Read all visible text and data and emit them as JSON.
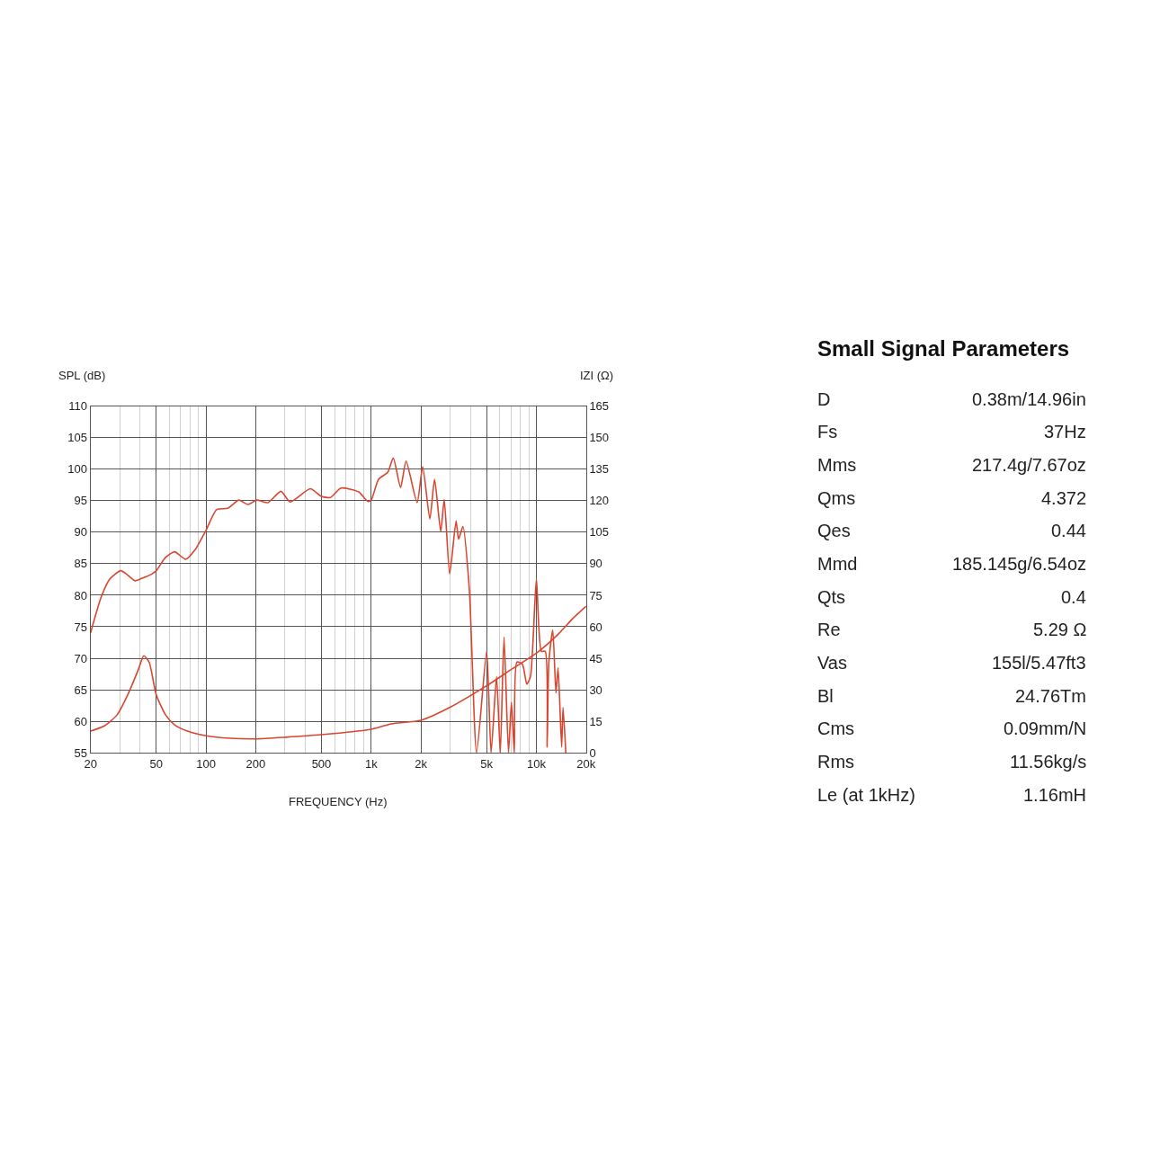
{
  "chart_data": [
    {
      "type": "line",
      "xlabel": "FREQUENCY (Hz)",
      "ylabel": "SPL (dB)",
      "y2label": "IZI (Ω)",
      "log": "x",
      "grid": true,
      "marker": "none",
      "line_style": "solid",
      "xlim": [
        20,
        20000
      ],
      "ylim": [
        55,
        110
      ],
      "y2lim": [
        0,
        165
      ],
      "xticks": [
        20,
        {
          "value": 30,
          "label": null
        },
        {
          "value": 40,
          "label": null
        },
        50,
        {
          "value": 60,
          "label": null
        },
        {
          "value": 70,
          "label": null
        },
        {
          "value": 80,
          "label": null
        },
        {
          "value": 90,
          "label": null
        },
        100,
        200,
        {
          "value": 300,
          "label": null
        },
        {
          "value": 400,
          "label": null
        },
        500,
        {
          "value": 600,
          "label": null
        },
        {
          "value": 700,
          "label": null
        },
        {
          "value": 800,
          "label": null
        },
        {
          "value": 900,
          "label": null
        },
        {
          "value": 1000,
          "label": "1k"
        },
        {
          "value": 2000,
          "label": "2k"
        },
        {
          "value": 3000,
          "label": null
        },
        {
          "value": 4000,
          "label": null
        },
        {
          "value": 5000,
          "label": "5k"
        },
        {
          "value": 6000,
          "label": null
        },
        {
          "value": 7000,
          "label": null
        },
        {
          "value": 8000,
          "label": null
        },
        {
          "value": 9000,
          "label": null
        },
        {
          "value": 10000,
          "label": "10k"
        },
        {
          "value": 20000,
          "label": "20k"
        }
      ],
      "yticks": [
        55,
        60,
        65,
        70,
        75,
        80,
        85,
        90,
        95,
        100,
        105,
        110
      ],
      "y2ticks": [
        0,
        15,
        30,
        45,
        60,
        75,
        90,
        105,
        120,
        135,
        150,
        165
      ],
      "series": [
        {
          "color": "#d9452e",
          "x": [
            20,
            23.2,
            26.2,
            30.5,
            33.6,
            37.2,
            41,
            46.5,
            50,
            56.9,
            64.6,
            75.3,
            85.7,
            100,
            116,
            135.5,
            158,
            179,
            203,
            237,
            284,
            323,
            428,
            500,
            566,
            656,
            841,
            952,
            1000,
            1108,
            1259,
            1361,
            1507,
            1626,
            1897,
            2050,
            2265,
            2419,
            2636,
            2768,
            2986,
            3266,
            3381,
            3591,
            3928,
            4345,
            5000,
            5317,
            5740,
            6045,
            6370,
            6780,
            7060,
            7350,
            7620,
            8220,
            8750,
            9210,
            10000,
            10720,
            11320,
            11620,
            11900,
            12560,
            13140,
            13530,
            14220,
            14500,
            15070
          ],
          "values": [
            74,
            79.7,
            82.6,
            83.9,
            83.2,
            82.3,
            82.7,
            83.3,
            83.9,
            86,
            86.9,
            85.7,
            87.2,
            90.3,
            93.6,
            93.8,
            95.1,
            94.4,
            95.1,
            94.7,
            96.5,
            94.8,
            96.9,
            95.7,
            95.5,
            97,
            96.4,
            94.9,
            95.1,
            98.4,
            99.5,
            101.8,
            97.1,
            101.3,
            94.7,
            100.4,
            92.1,
            98.4,
            90.1,
            95.2,
            83.4,
            91.8,
            88.9,
            90.9,
            80.9,
            55,
            71.1,
            55,
            67.1,
            55,
            73.4,
            55,
            63,
            55,
            69.4,
            69.1,
            65.9,
            67.1,
            82.6,
            71.1,
            71.1,
            55.9,
            69.4,
            74.5,
            64.5,
            68.5,
            55.9,
            62.2,
            55
          ]
        },
        {
          "color": "#d9452e",
          "axis": "y2",
          "x": [
            20,
            24.4,
            29,
            33.6,
            39,
            42,
            45.3,
            50,
            56.9,
            64.6,
            77.3,
            100,
            140,
            200,
            305,
            500,
            1000,
            1325,
            2000,
            2986,
            5000,
            7060,
            10000,
            13590,
            16550,
            20000
          ],
          "values": [
            10.3,
            12.9,
            18.1,
            27.6,
            39.7,
            46.2,
            43.1,
            27.6,
            18.1,
            13.3,
            10.3,
            8.1,
            6.9,
            6.6,
            7.4,
            8.6,
            11.2,
            13.8,
            15.5,
            21.6,
            31.9,
            39.7,
            47.4,
            56.5,
            63.8,
            69.8
          ]
        }
      ]
    },
    {
      "type": "other",
      "title": "Small Signal Parameters",
      "annotations": [
        "D",
        "0.38m/14.96in",
        "Fs",
        "37Hz",
        "Mms",
        "217.4g/7.67oz",
        "Qms",
        "4.372",
        "Qes",
        "0.44",
        "Mmd",
        "185.145g/6.54oz",
        "Qts",
        "0.4",
        "Re",
        "5.29 Ω",
        "Vas",
        "155l/5.47ft3",
        "Bl",
        "24.76Tm",
        "Cms",
        "0.09mm/N",
        "Rms",
        "11.56kg/s",
        "Le (at 1kHz)",
        "1.16mH"
      ]
    }
  ]
}
